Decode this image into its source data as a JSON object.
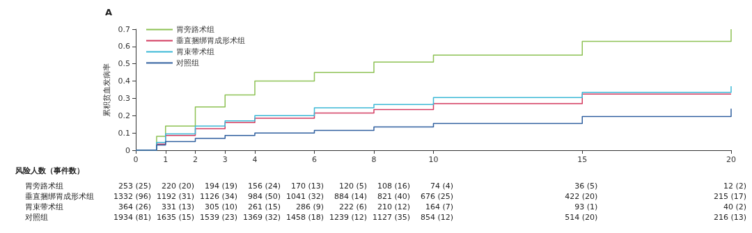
{
  "chart_data": {
    "type": "step",
    "title": "A",
    "ylabel": "累积贫血发病率",
    "xlim": [
      0,
      20
    ],
    "xticks": [
      0,
      1,
      2,
      3,
      4,
      6,
      8,
      10,
      15,
      20
    ],
    "ylim": [
      0,
      0.7
    ],
    "yticks": [
      0,
      0.1,
      0.2,
      0.3,
      0.4,
      0.5,
      0.6,
      0.7
    ],
    "grid": false,
    "legend": "top left",
    "marker": "none",
    "line_style": "solid",
    "series": [
      {
        "name": "胃旁路术组",
        "color": "#8dc153",
        "x": [
          0,
          0.7,
          1,
          2,
          3,
          4,
          6,
          8,
          10,
          15,
          20,
          20
        ],
        "values": [
          0,
          0.08,
          0.14,
          0.25,
          0.32,
          0.4,
          0.45,
          0.51,
          0.55,
          0.63,
          0.63,
          0.7
        ]
      },
      {
        "name": "垂直捆绑胃成形术组",
        "color": "#d33a5f",
        "x": [
          0,
          0.7,
          1,
          2,
          3,
          4,
          6,
          8,
          10,
          15,
          20
        ],
        "values": [
          0,
          0.035,
          0.085,
          0.125,
          0.16,
          0.185,
          0.215,
          0.235,
          0.27,
          0.325,
          0.325
        ]
      },
      {
        "name": "胃束带术组",
        "color": "#3bb8d6",
        "x": [
          0,
          0.7,
          1,
          2,
          3,
          4,
          6,
          8,
          10,
          15,
          20,
          20
        ],
        "values": [
          0,
          0.045,
          0.095,
          0.14,
          0.17,
          0.2,
          0.245,
          0.265,
          0.305,
          0.335,
          0.335,
          0.37
        ]
      },
      {
        "name": "对照组",
        "color": "#2e5e9e",
        "x": [
          0,
          0.7,
          1,
          2,
          3,
          4,
          6,
          8,
          10,
          15,
          20,
          20
        ],
        "values": [
          0,
          0.03,
          0.05,
          0.068,
          0.085,
          0.1,
          0.115,
          0.135,
          0.155,
          0.195,
          0.195,
          0.24
        ]
      }
    ],
    "annotations": [
      "风险人数（事件数）",
      "胃旁路术组",
      "253 (25)",
      "220 (20)",
      "194 (19)",
      "156 (24)",
      "170 (13)",
      "120 (5)",
      "108 (16)",
      "74 (4)",
      "36 (5)",
      "12 (2)",
      "垂直捆绑胃成形术组",
      "1332 (96)",
      "1192 (31)",
      "1126 (34)",
      "984 (50)",
      "1041 (32)",
      "884 (14)",
      "821 (40)",
      "676 (25)",
      "422 (20)",
      "215 (17)",
      "胃束带术组",
      "364 (26)",
      "331 (13)",
      "305 (10)",
      "261 (15)",
      "286 (9)",
      "222 (6)",
      "210 (12)",
      "164 (7)",
      "93 (1)",
      "40 (2)",
      "对照组",
      "1934 (81)",
      "1635 (15)",
      "1539 (23)",
      "1369 (32)",
      "1458 (18)",
      "1239 (12)",
      "1127 (35)",
      "854 (12)",
      "514 (20)",
      "216 (13)"
    ]
  }
}
